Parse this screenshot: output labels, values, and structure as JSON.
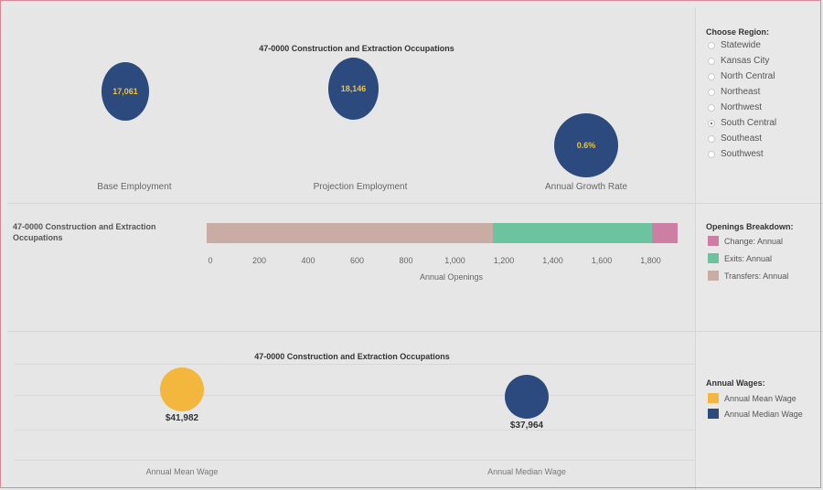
{
  "chart_data": [
    {
      "type": "bubble",
      "title": "47-0000 Construction and Extraction Occupations",
      "items": [
        {
          "label": "Base Employment",
          "display": "17,061",
          "color": "#2c4a7e"
        },
        {
          "label": "Projection Employment",
          "display": "18,146",
          "color": "#2c4a7e"
        },
        {
          "label": "Annual Growth Rate",
          "display": "0.6%",
          "color": "#2c4a7e"
        }
      ]
    },
    {
      "type": "stacked-bar",
      "row_label": "47-0000 Construction and Extraction Occupations",
      "xlabel": "Annual Openings",
      "xlim": [
        0,
        2000
      ],
      "ticks": [
        "0",
        "200",
        "400",
        "600",
        "800",
        "1,000",
        "1,200",
        "1,400",
        "1,600",
        "1,800"
      ],
      "tick_values": [
        0,
        200,
        400,
        600,
        800,
        1000,
        1200,
        1400,
        1600,
        1800
      ],
      "segments": [
        {
          "name": "Transfers: Annual",
          "start": 0,
          "end": 1170,
          "color": "#c9ada4"
        },
        {
          "name": "Exits: Annual",
          "start": 1170,
          "end": 1820,
          "color": "#6cc3a0"
        },
        {
          "name": "Change: Annual",
          "start": 1820,
          "end": 1925,
          "color": "#cc7fa3"
        }
      ]
    },
    {
      "type": "bubble",
      "title": "47-0000 Construction and Extraction Occupations",
      "items": [
        {
          "label": "Annual Mean Wage",
          "display": "$41,982",
          "color": "#f2b73c"
        },
        {
          "label": "Annual Median Wage",
          "display": "$37,964",
          "color": "#2c4a7e"
        }
      ]
    }
  ],
  "region_filter": {
    "heading": "Choose Region:",
    "options": [
      "Statewide",
      "Kansas City",
      "North Central",
      "Northeast",
      "Northwest",
      "South Central",
      "Southeast",
      "Southwest"
    ],
    "selected": "South Central"
  },
  "openings_legend": {
    "heading": "Openings Breakdown:",
    "items": [
      {
        "label": "Change: Annual",
        "color": "#cc7fa3"
      },
      {
        "label": "Exits: Annual",
        "color": "#6cc3a0"
      },
      {
        "label": "Transfers: Annual",
        "color": "#c9ada4"
      }
    ]
  },
  "wages_legend": {
    "heading": "Annual Wages:",
    "items": [
      {
        "label": "Annual Mean Wage",
        "color": "#f2b73c"
      },
      {
        "label": "Annual Median Wage",
        "color": "#2c4a7e"
      }
    ]
  }
}
